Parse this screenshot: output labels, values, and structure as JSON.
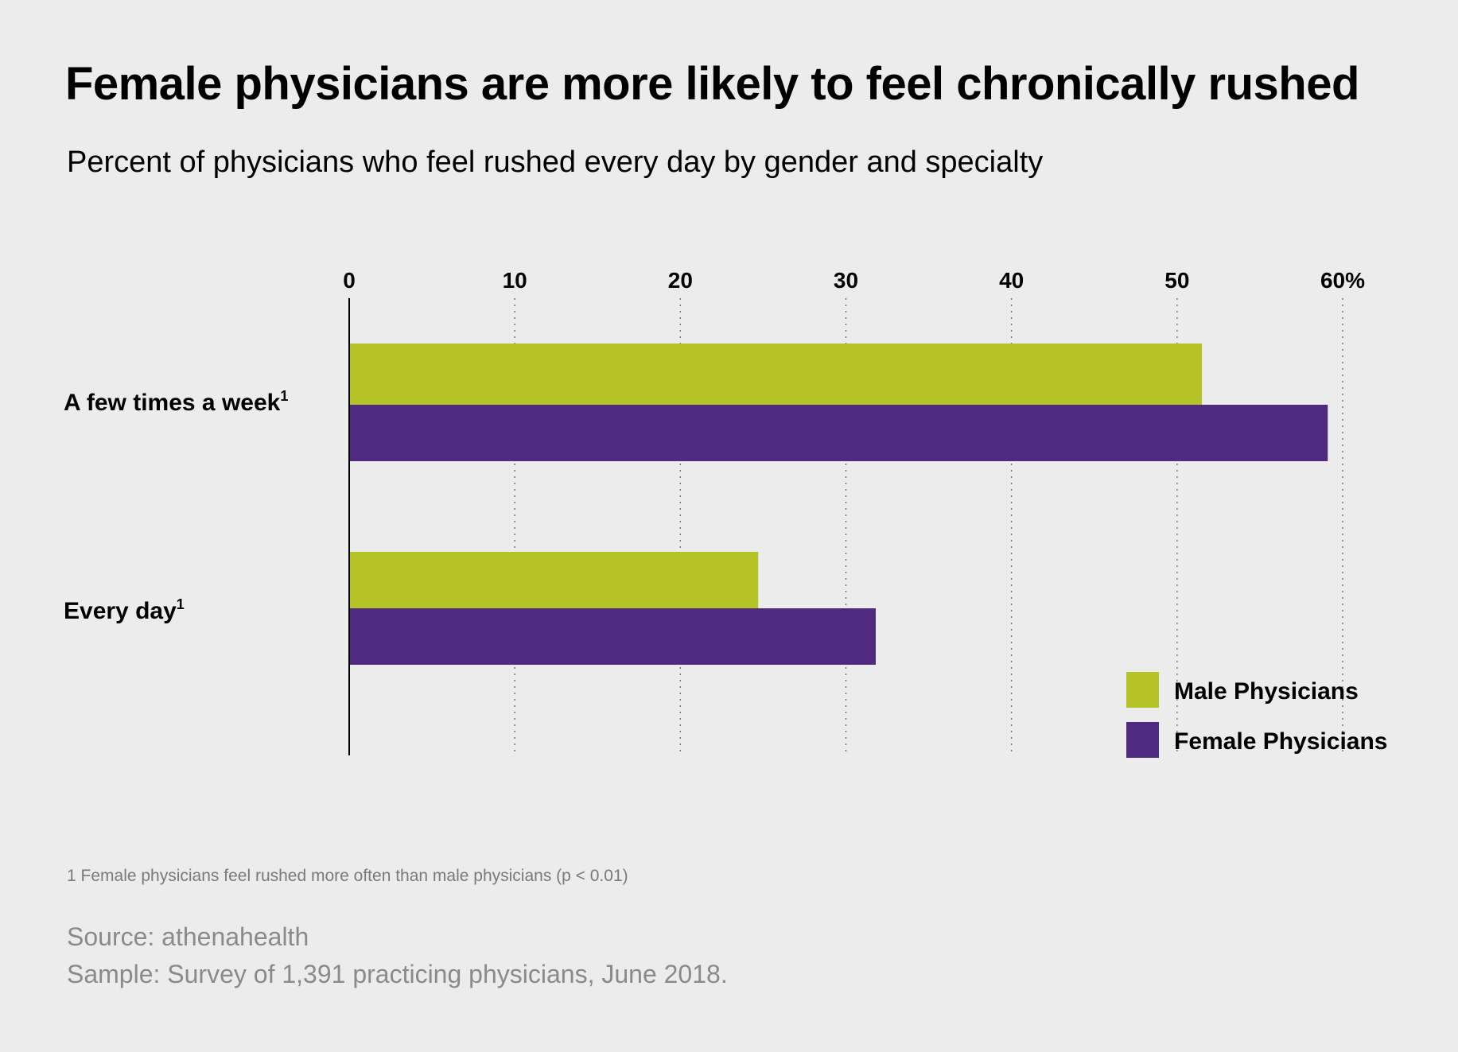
{
  "title": "Female physicians are more likely to feel chronically rushed",
  "subtitle": "Percent of physicians who feel rushed every day by gender and specialty",
  "chart_data": {
    "type": "bar",
    "orientation": "horizontal",
    "categories": [
      "A few times a week",
      "Every day"
    ],
    "category_superscripts": [
      "1",
      "1"
    ],
    "series": [
      {
        "name": "Male Physicians",
        "color": "#b5c326",
        "values": [
          51.5,
          24.7
        ]
      },
      {
        "name": "Female Physicians",
        "color": "#4f2a80",
        "values": [
          59.1,
          31.8
        ]
      }
    ],
    "xlim": [
      0,
      60
    ],
    "ticks": [
      "0",
      "10",
      "20",
      "30",
      "40",
      "50",
      "60%"
    ],
    "tick_values": [
      0,
      10,
      20,
      30,
      40,
      50,
      60
    ],
    "grid": "dotted vertical",
    "legend_position": "bottom-right"
  },
  "footnote": "1 Female physicians feel rushed more often than male physicians (p < 0.01)",
  "source": "Source: athenahealth",
  "sample": "Sample: Survey of 1,391 practicing physicians, June 2018."
}
